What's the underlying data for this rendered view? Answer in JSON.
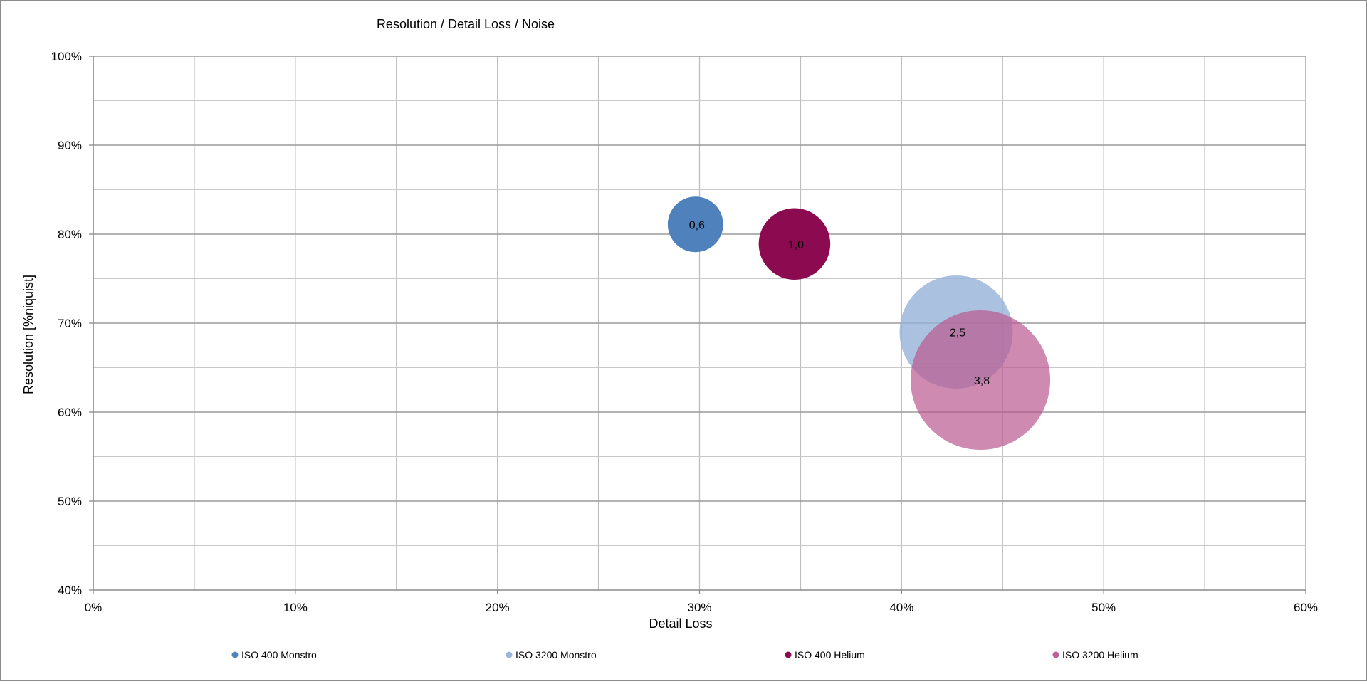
{
  "chart_data": {
    "type": "bubble",
    "title": "Resolution / Detail Loss / Noise",
    "xlabel": "Detail Loss",
    "ylabel": "Resolution [%niquist]",
    "xlim": [
      0,
      0.6
    ],
    "ylim": [
      0.4,
      1.0
    ],
    "x_ticks": [
      "0%",
      "10%",
      "20%",
      "30%",
      "40%",
      "50%",
      "60%"
    ],
    "y_ticks": [
      "40%",
      "50%",
      "60%",
      "70%",
      "80%",
      "90%",
      "100%"
    ],
    "grid": true,
    "legend_position": "bottom",
    "series": [
      {
        "name": "ISO 400 Monstro",
        "x": 0.298,
        "y": 0.811,
        "size": 0.6,
        "label": "0,6",
        "color": "#4F81BD",
        "opacity": 1.0
      },
      {
        "name": "ISO 3200 Monstro",
        "x": 0.427,
        "y": 0.69,
        "size": 2.5,
        "label": "2,5",
        "color": "#95B3D7",
        "opacity": 0.8
      },
      {
        "name": "ISO 400 Helium",
        "x": 0.347,
        "y": 0.789,
        "size": 1.0,
        "label": "1,0",
        "color": "#8B0A50",
        "opacity": 1.0
      },
      {
        "name": "ISO 3200 Helium",
        "x": 0.439,
        "y": 0.636,
        "size": 3.8,
        "label": "3,8",
        "color": "#B9598F",
        "opacity": 0.7
      }
    ]
  }
}
